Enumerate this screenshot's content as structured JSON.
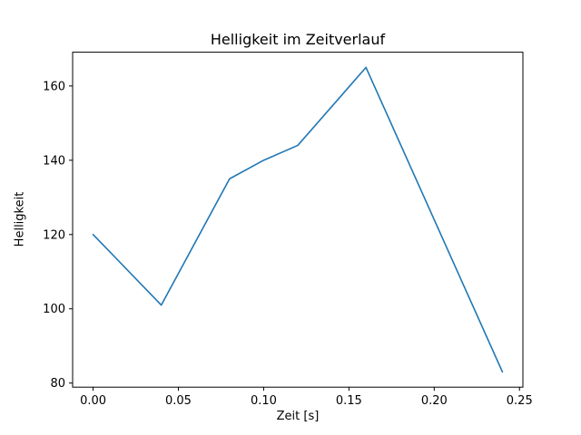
{
  "chart_data": {
    "type": "line",
    "title": "Helligkeit im Zeitverlauf",
    "xlabel": "Zeit [s]",
    "ylabel": "Helligkeit",
    "x": [
      0.0,
      0.04,
      0.08,
      0.1,
      0.12,
      0.16,
      0.2,
      0.24
    ],
    "y": [
      120,
      101,
      135,
      140,
      144,
      165,
      124,
      83
    ],
    "xlim": [
      -0.012,
      0.252
    ],
    "ylim": [
      78.9,
      169.1
    ],
    "xticks": [
      0.0,
      0.05,
      0.1,
      0.15,
      0.2,
      0.25
    ],
    "yticks": [
      80,
      100,
      120,
      140,
      160
    ],
    "x_tick_decimals": 2,
    "line_color": "#1f77b4",
    "axis_color": "#000000",
    "background_color": "#ffffff",
    "grid": false,
    "legend": "none"
  }
}
